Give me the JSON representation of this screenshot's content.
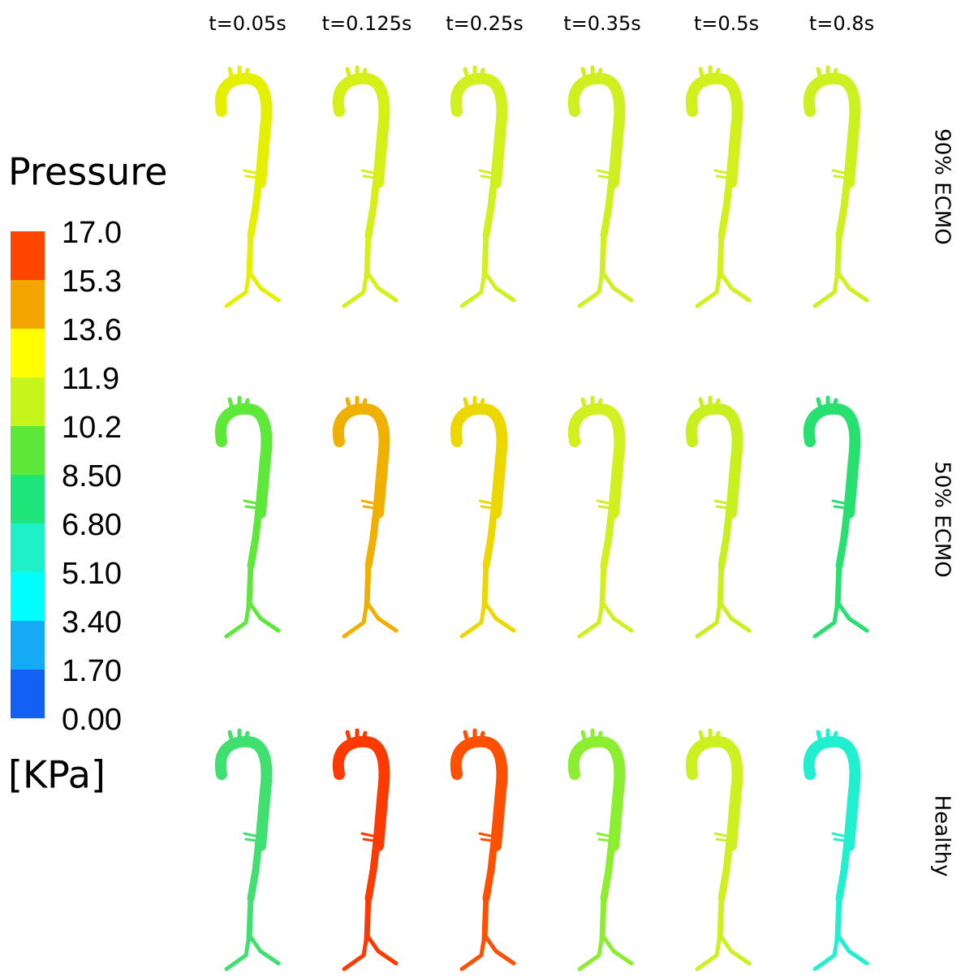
{
  "legend": {
    "title": "Pressure",
    "labels": [
      "17.0",
      "15.3",
      "13.6",
      "11.9",
      "10.2",
      "8.50",
      "6.80",
      "5.10",
      "3.40",
      "1.70",
      "0.00"
    ],
    "unit": "[KPa]",
    "colors": [
      "#ff4500",
      "#f5a500",
      "#ffff00",
      "#c6f51c",
      "#5ee83a",
      "#1ee67a",
      "#1ef0c8",
      "#00ffff",
      "#14aaf5",
      "#1460f5"
    ]
  },
  "columns": [
    "t=0.05s",
    "t=0.125s",
    "t=0.25s",
    "t=0.35s",
    "t=0.5s",
    "t=0.8s"
  ],
  "rows": [
    {
      "label": "90% ECMO",
      "colors": [
        "#e4f000",
        "#d4f018",
        "#d0f020",
        "#cef020",
        "#d2f01c",
        "#ccf020"
      ]
    },
    {
      "label": "50% ECMO",
      "colors": [
        "#5ee83a",
        "#f0b000",
        "#ecd800",
        "#d0f020",
        "#c8f020",
        "#28e070"
      ]
    },
    {
      "label": "Healthy",
      "colors": [
        "#40e070",
        "#ff3a00",
        "#ff5000",
        "#8cee30",
        "#ccf020",
        "#20f0d0"
      ]
    }
  ]
}
